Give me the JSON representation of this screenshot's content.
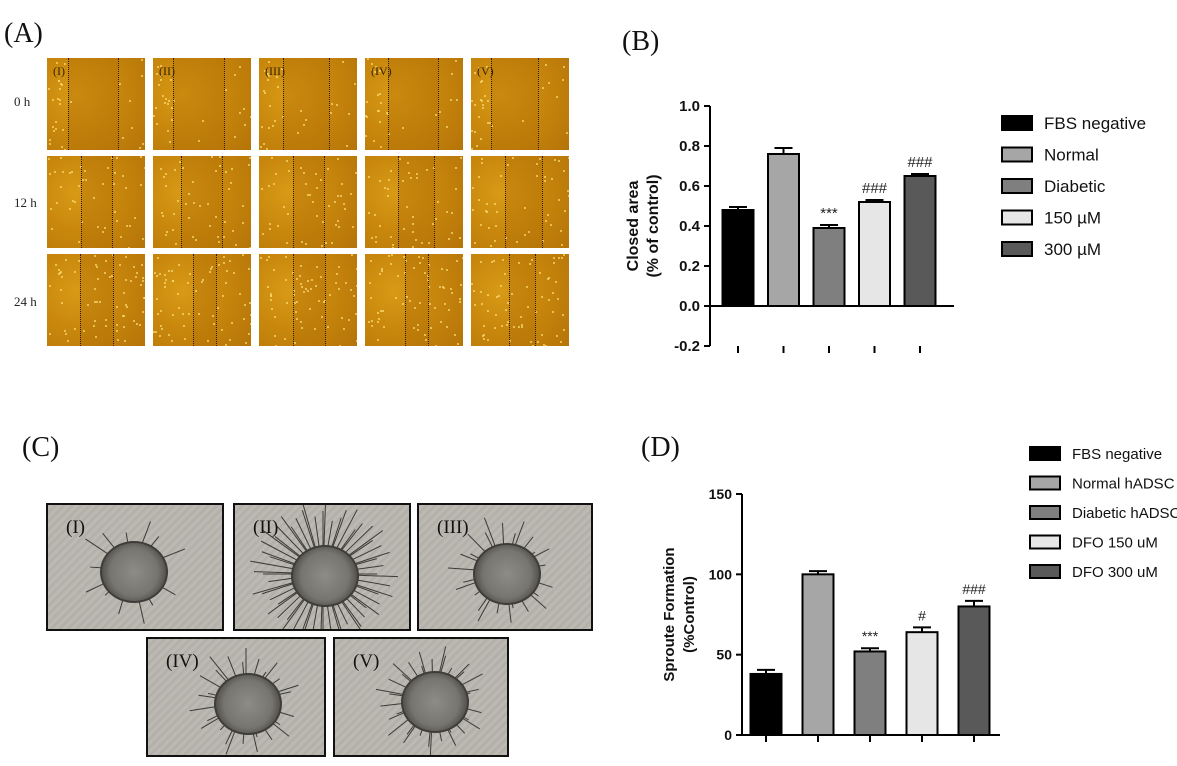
{
  "panels": {
    "A": {
      "label": "(A)",
      "time_labels": [
        "0 h",
        "12 h",
        "24 h"
      ],
      "column_labels": [
        "(I)",
        "(II)",
        "(III)",
        "(IV)",
        "(V)"
      ]
    },
    "B": {
      "label": "(B)"
    },
    "C": {
      "label": "(C)",
      "image_labels": [
        "(I)",
        "(II)",
        "(III)",
        "(IV)",
        "(V)"
      ]
    },
    "D": {
      "label": "(D)"
    }
  },
  "chart_data": [
    {
      "id": "B",
      "type": "bar",
      "categories": [
        "FBS negative",
        "Normal",
        "Diabetic",
        "150 µM",
        "300 µM"
      ],
      "values": [
        0.48,
        0.76,
        0.39,
        0.52,
        0.65
      ],
      "errors": [
        0.015,
        0.03,
        0.015,
        0.01,
        0.01
      ],
      "annotations": [
        "",
        "",
        "***",
        "###",
        "###"
      ],
      "colors": [
        "#000000",
        "#a6a6a6",
        "#7f7f7f",
        "#e6e6e6",
        "#595959"
      ],
      "ylabel_line1": "Closed area",
      "ylabel_line2": "(% of control)",
      "xlabel": "",
      "ylim": [
        -0.2,
        1.0
      ],
      "yticks": [
        "1.0",
        "0.8",
        "0.6",
        "0.4",
        "0.2",
        "0.0",
        "-0.2"
      ],
      "ytick_values": [
        1.0,
        0.8,
        0.6,
        0.4,
        0.2,
        0.0,
        -0.2
      ],
      "legend": [
        "FBS negative",
        "Normal",
        "Diabetic",
        "150 µM",
        "300 µM"
      ]
    },
    {
      "id": "D",
      "type": "bar",
      "categories": [
        "FBS negative",
        "Normal hADSC",
        "Diabetic hADSC",
        "DFO 150 uM",
        "DFO 300 uM"
      ],
      "values": [
        38,
        100,
        52,
        64,
        80
      ],
      "errors": [
        2.5,
        2,
        2,
        3,
        3.5
      ],
      "annotations": [
        "",
        "",
        "***",
        "#",
        "###"
      ],
      "colors": [
        "#000000",
        "#a6a6a6",
        "#7f7f7f",
        "#e6e6e6",
        "#595959"
      ],
      "ylabel_line1": "Sproute Formation",
      "ylabel_line2": "(%Control)",
      "xlabel": "",
      "ylim": [
        0,
        150
      ],
      "yticks": [
        "150",
        "100",
        "50",
        "0"
      ],
      "ytick_values": [
        150,
        100,
        50,
        0
      ],
      "legend": [
        "FBS negative",
        "Normal hADSC",
        "Diabetic hADSC",
        "DFO 150 uM",
        "DFO 300 uM"
      ]
    }
  ]
}
